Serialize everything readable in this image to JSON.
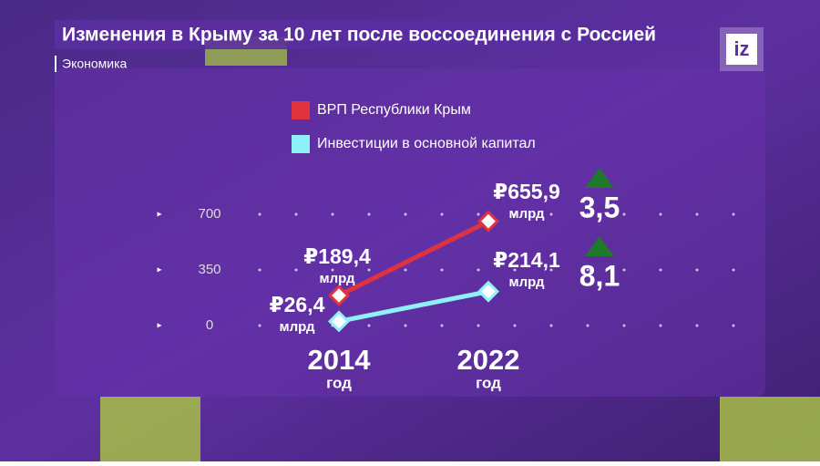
{
  "header": {
    "title": "Изменения в Крыму за 10 лет после воссоединения с Россией",
    "section": "Экономика",
    "logo": "iz"
  },
  "chart_data": {
    "type": "line",
    "categories": [
      "2014",
      "2022"
    ],
    "x_unit": "год",
    "value_unit": "млрд",
    "ylim": [
      0,
      700
    ],
    "yticks": [
      0,
      350,
      700
    ],
    "series": [
      {
        "name": "ВРП Республики Крым",
        "color": "#e0333f",
        "values": [
          189.4,
          655.9
        ],
        "value_labels": [
          "₽189,4",
          "₽655,9"
        ],
        "growth": 3.5,
        "growth_label": "3,5"
      },
      {
        "name": "Инвестиции в основной капитал",
        "color": "#8ff0f8",
        "values": [
          26.4,
          214.1
        ],
        "value_labels": [
          "₽26,4",
          "₽214,1"
        ],
        "growth": 8.1,
        "growth_label": "8,1"
      }
    ]
  }
}
